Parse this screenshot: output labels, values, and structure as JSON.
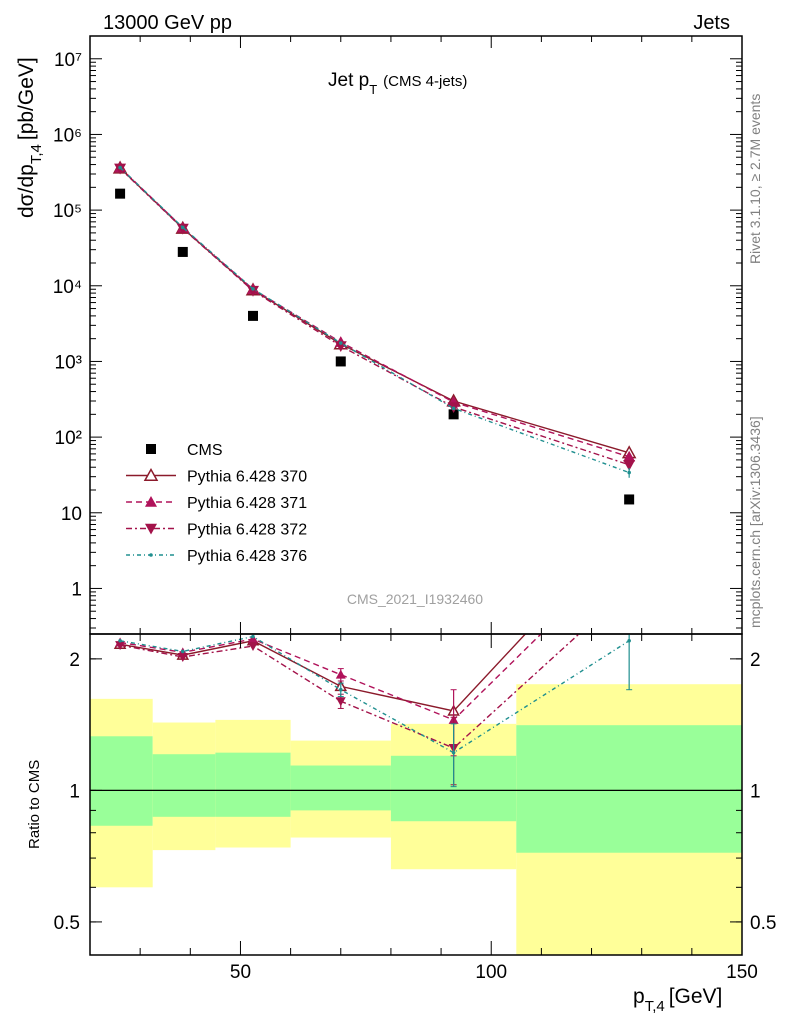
{
  "header": {
    "left": "13000 GeV pp",
    "right": "Jets"
  },
  "side_labels": {
    "rivet": "Rivet 3.1.10, ≥ 2.7M events",
    "source": "mcplots.cern.ch [arXiv:1306.3436]"
  },
  "watermark": "CMS_2021_I1932460",
  "colors": {
    "data": "#000000",
    "p370": "#8b1a2b",
    "p371": "#b0125a",
    "p372": "#a3124a",
    "p376": "#1f8f8f",
    "band_green": "#99ff99",
    "band_yellow": "#ffff99"
  },
  "chart_data": [
    {
      "type": "line",
      "panel": "main",
      "title_main": "Jet p",
      "title_sub": "T",
      "title_extra": "(CMS 4-jets)",
      "ylabel_main": "dσ/dp",
      "ylabel_sub": "T,4",
      "ylabel_unit": "[pb/GeV]",
      "yscale": "log",
      "ylim": [
        0.25,
        20000000
      ],
      "xlim": [
        20,
        150
      ],
      "y_tick_labels": [
        "10⁷",
        "10⁶",
        "10⁵",
        "10⁴",
        "10³",
        "10²",
        "10",
        "1"
      ],
      "legend_position": "bottom-left",
      "series": [
        {
          "name": "CMS",
          "marker": "square",
          "x": [
            26,
            38.5,
            52.5,
            70,
            92.5,
            127.5
          ],
          "y": [
            165000,
            28000,
            4000,
            1000,
            200,
            15
          ]
        },
        {
          "name": "Pythia 6.428 370",
          "marker": "triangle-open",
          "x": [
            26,
            38.5,
            52.5,
            70,
            92.5,
            127.5
          ],
          "y": [
            360000,
            57500,
            8800,
            1700,
            300,
            62
          ],
          "yerr": [
            0,
            0,
            0,
            0,
            0,
            8
          ]
        },
        {
          "name": "Pythia 6.428 371",
          "marker": "triangle",
          "x": [
            26,
            38.5,
            52.5,
            70,
            92.5,
            127.5
          ],
          "y": [
            365000,
            58500,
            9000,
            1800,
            290,
            55
          ],
          "yerr": [
            0,
            0,
            0,
            0,
            0,
            7
          ]
        },
        {
          "name": "Pythia 6.428 372",
          "marker": "triangle-down",
          "x": [
            26,
            38.5,
            52.5,
            70,
            92.5,
            127.5
          ],
          "y": [
            355000,
            57000,
            8600,
            1600,
            250,
            43
          ],
          "yerr": [
            0,
            0,
            0,
            0,
            0,
            6
          ]
        },
        {
          "name": "Pythia 6.428 376",
          "marker": "dot",
          "x": [
            26,
            38.5,
            52.5,
            70,
            92.5,
            127.5
          ],
          "y": [
            365000,
            59000,
            9100,
            1750,
            240,
            34
          ],
          "yerr": [
            0,
            0,
            0,
            0,
            0,
            5
          ]
        }
      ]
    },
    {
      "type": "line",
      "panel": "ratio",
      "ylabel": "Ratio to CMS",
      "xlabel_main": "p",
      "xlabel_sub": "T,4",
      "xlabel_unit": "[GeV]",
      "xlim": [
        20,
        150
      ],
      "ylim": [
        0.42,
        2.28
      ],
      "x_tick_labels": [
        "50",
        "100",
        "150"
      ],
      "y_tick_labels": [
        "2",
        "1",
        "0.5"
      ],
      "bands": [
        {
          "x0": 20,
          "x1": 32.5,
          "inner": [
            0.83,
            1.33
          ],
          "outer": [
            0.6,
            1.62
          ]
        },
        {
          "x0": 32.5,
          "x1": 45,
          "inner": [
            0.87,
            1.21
          ],
          "outer": [
            0.73,
            1.43
          ]
        },
        {
          "x0": 45,
          "x1": 60,
          "inner": [
            0.87,
            1.22
          ],
          "outer": [
            0.74,
            1.45
          ]
        },
        {
          "x0": 60,
          "x1": 80,
          "inner": [
            0.9,
            1.14
          ],
          "outer": [
            0.78,
            1.3
          ]
        },
        {
          "x0": 80,
          "x1": 105,
          "inner": [
            0.85,
            1.2
          ],
          "outer": [
            0.66,
            1.42
          ]
        },
        {
          "x0": 105,
          "x1": 150,
          "inner": [
            0.72,
            1.41
          ],
          "outer": [
            0.3,
            1.75
          ]
        }
      ],
      "series": [
        {
          "name": "Pythia 6.428 370",
          "x": [
            26,
            38.5,
            52.5,
            70,
            92.5,
            127.5
          ],
          "y": [
            2.16,
            2.04,
            2.2,
            1.73,
            1.52,
            4.1
          ]
        },
        {
          "name": "Pythia 6.428 371",
          "x": [
            26,
            38.5,
            52.5,
            70,
            92.5,
            127.5
          ],
          "y": [
            2.18,
            2.07,
            2.22,
            1.84,
            1.45,
            3.6
          ],
          "yerr": [
            0,
            0,
            0,
            0.06,
            0.25,
            0.4
          ]
        },
        {
          "name": "Pythia 6.428 372",
          "x": [
            26,
            38.5,
            52.5,
            70,
            92.5,
            127.5
          ],
          "y": [
            2.15,
            2.02,
            2.14,
            1.6,
            1.25,
            2.9
          ],
          "yerr": [
            0,
            0,
            0,
            0.06,
            0.22,
            0.4
          ]
        },
        {
          "name": "Pythia 6.428 376",
          "x": [
            26,
            38.5,
            52.5,
            70,
            92.5,
            127.5
          ],
          "y": [
            2.2,
            2.08,
            2.25,
            1.7,
            1.22,
            2.2
          ],
          "yerr": [
            0,
            0,
            0,
            0.06,
            0.2,
            0.5
          ]
        }
      ]
    }
  ]
}
